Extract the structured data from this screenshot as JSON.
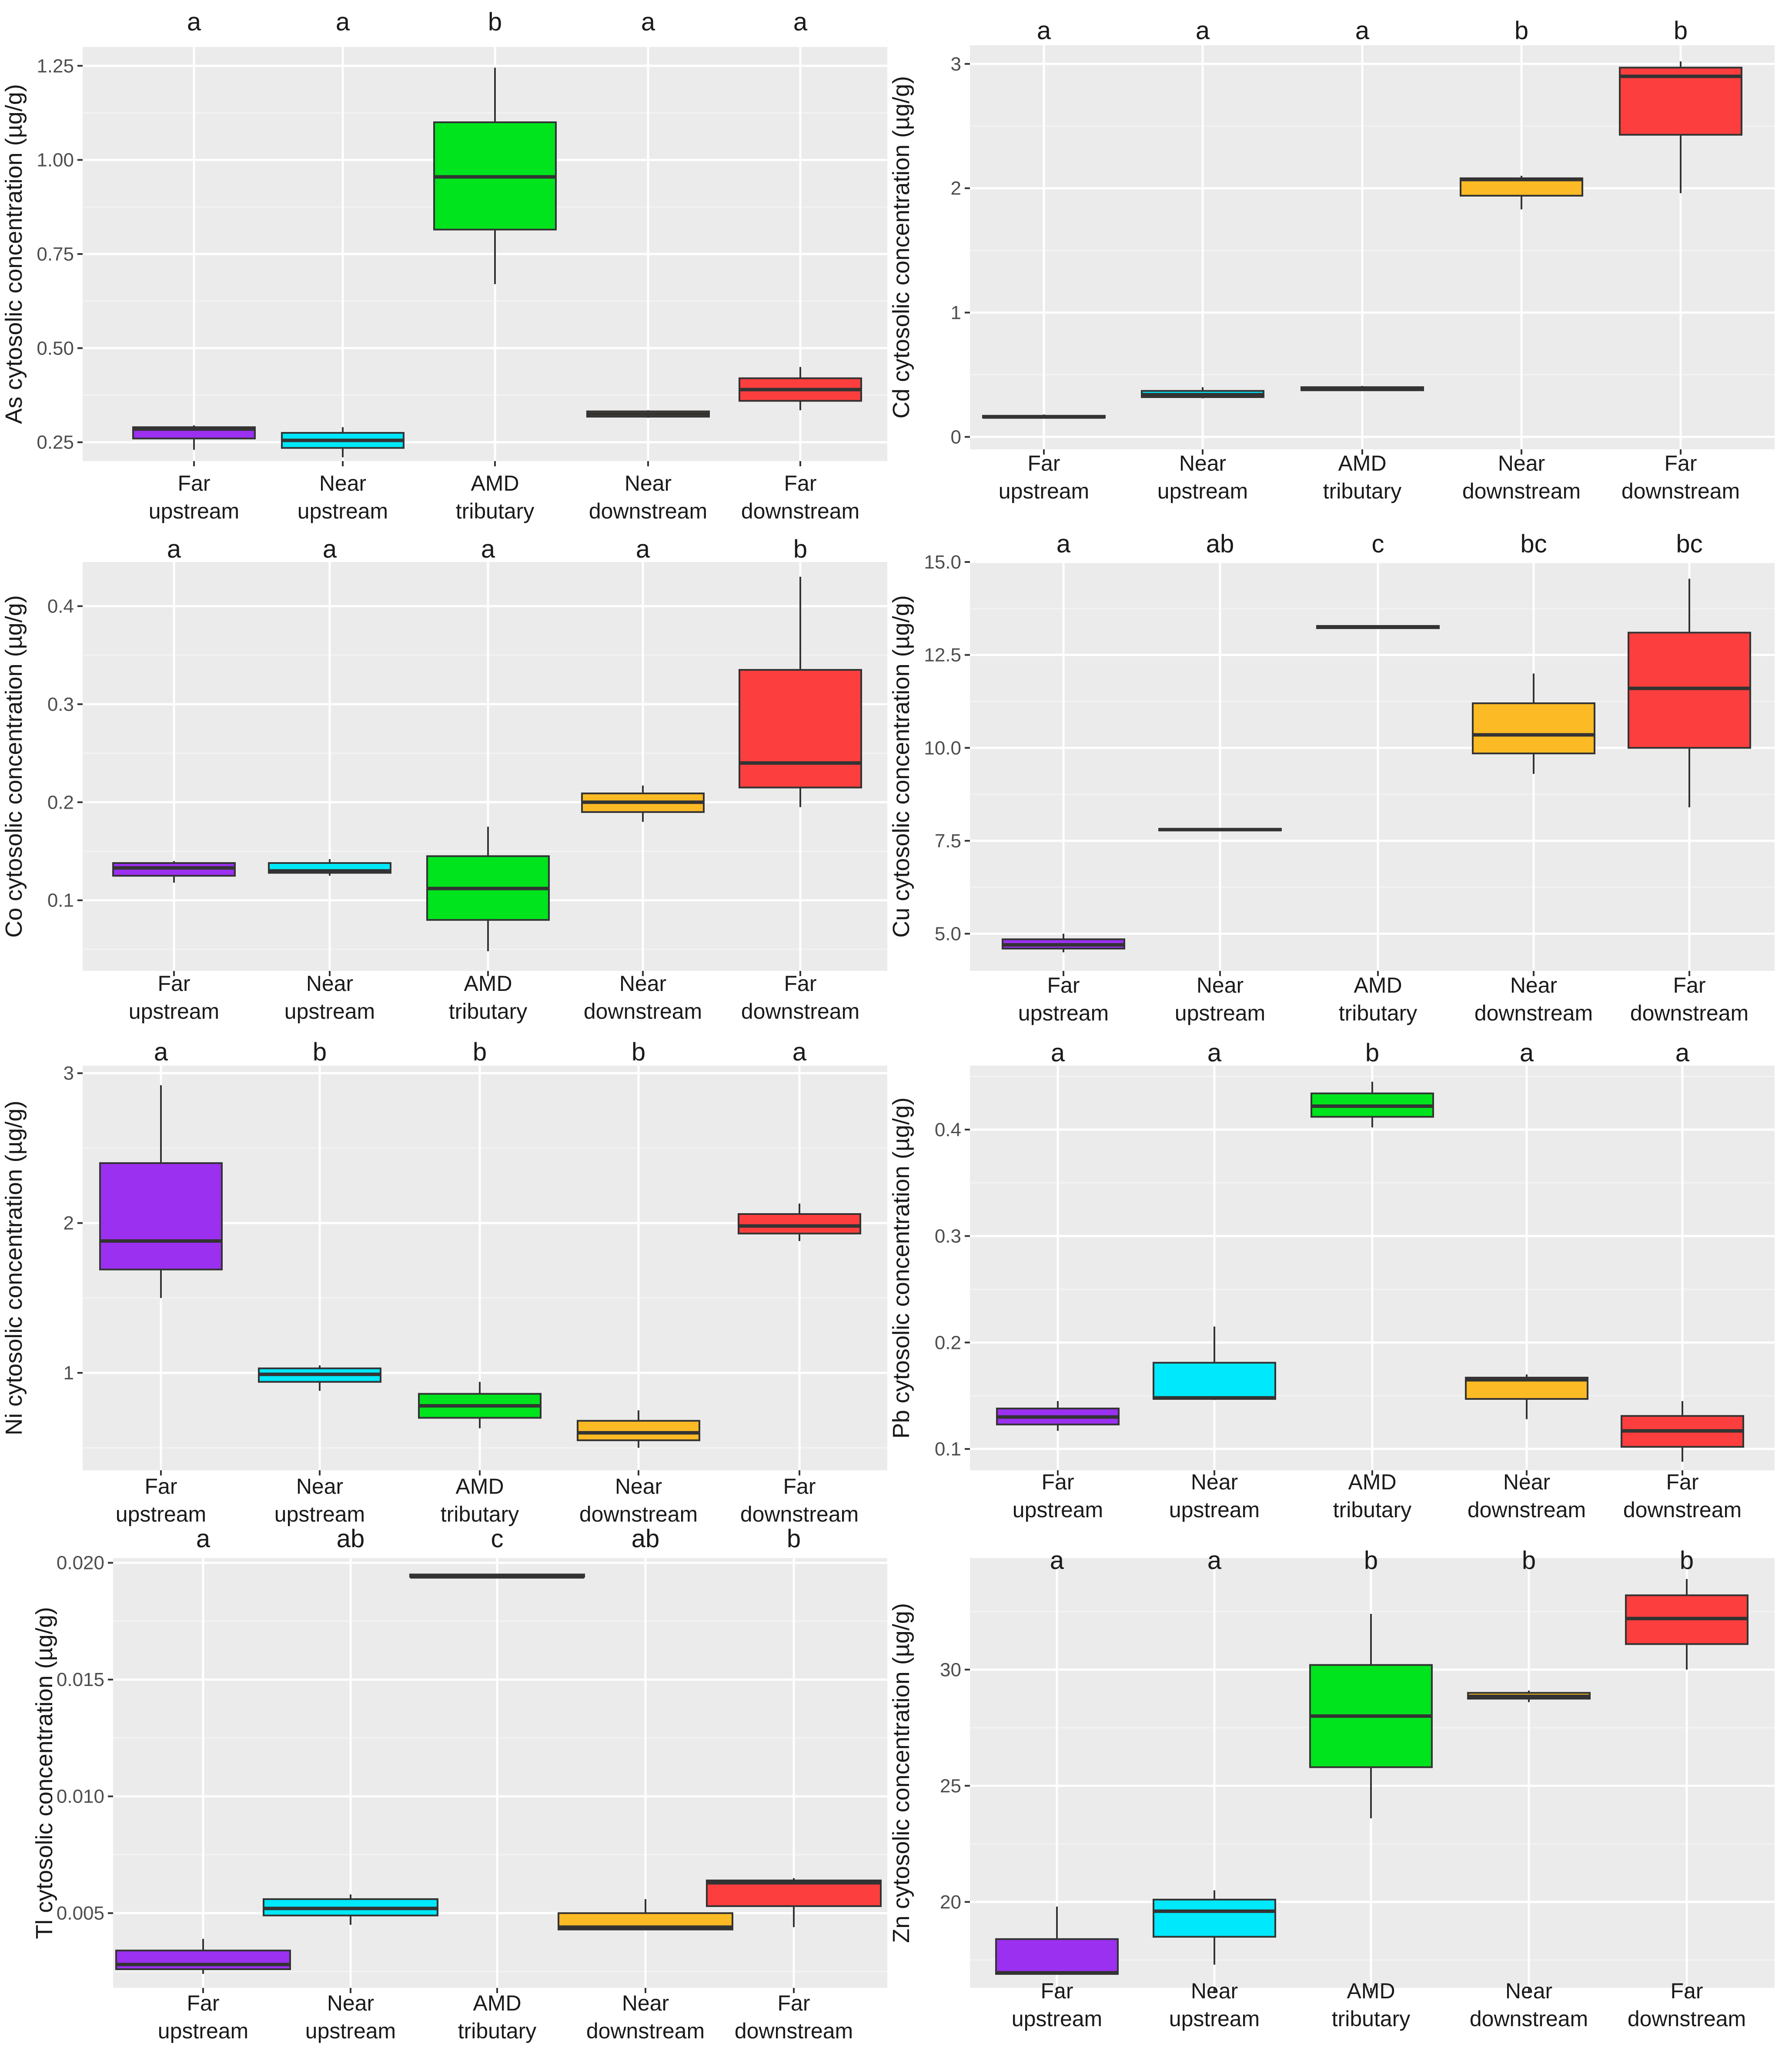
{
  "figure": {
    "palette": {
      "panel_bg": "#ebebeb",
      "grid_major": "#ffffff",
      "grid_minor": "#f3f3f3",
      "outline": "#333333",
      "whisker": "#333333",
      "far_upstream": "#9b30f0",
      "near_upstream": "#00e8fb",
      "amd_tributary": "#00e41e",
      "near_downstream": "#fcba25",
      "far_downstream": "#fd3e3e"
    }
  },
  "chart_data": [
    {
      "id": "as",
      "type": "boxplot",
      "ylabel": "As cytosolic concentration (µg/g)",
      "ylim": [
        0.2,
        1.3
      ],
      "yticks": [
        0.25,
        0.5,
        0.75,
        1.0,
        1.25
      ],
      "ytick_labels": [
        "0.25",
        "0.50",
        "0.75",
        "1.00",
        "1.25"
      ],
      "categories": [
        [
          "Far",
          "upstream"
        ],
        [
          "Near",
          "upstream"
        ],
        [
          "AMD",
          "tributary"
        ],
        [
          "Near",
          "downstream"
        ],
        [
          "Far",
          "downstream"
        ]
      ],
      "colors": [
        "far_upstream",
        "near_upstream",
        "amd_tributary",
        "near_downstream",
        "far_downstream"
      ],
      "letters": [
        "a",
        "a",
        "b",
        "a",
        "a"
      ],
      "boxes": [
        {
          "min": 0.23,
          "q1": 0.26,
          "median": 0.285,
          "q3": 0.29,
          "max": 0.295
        },
        {
          "min": 0.21,
          "q1": 0.235,
          "median": 0.255,
          "q3": 0.275,
          "max": 0.29
        },
        {
          "min": 0.67,
          "q1": 0.815,
          "median": 0.955,
          "q3": 1.1,
          "max": 1.245
        },
        {
          "min": 0.315,
          "q1": 0.318,
          "median": 0.325,
          "q3": 0.332,
          "max": 0.335
        },
        {
          "min": 0.335,
          "q1": 0.36,
          "median": 0.39,
          "q3": 0.42,
          "max": 0.45
        }
      ]
    },
    {
      "id": "cd",
      "type": "boxplot",
      "ylabel": "Cd cytosolic concentration (µg/g)",
      "ylim": [
        -0.1,
        3.15
      ],
      "yticks": [
        0,
        1,
        2,
        3
      ],
      "ytick_labels": [
        "0",
        "1",
        "2",
        "3"
      ],
      "categories": [
        [
          "Far",
          "upstream"
        ],
        [
          "Near",
          "upstream"
        ],
        [
          "AMD",
          "tributary"
        ],
        [
          "Near",
          "downstream"
        ],
        [
          "Far",
          "downstream"
        ]
      ],
      "colors": [
        "far_upstream",
        "near_upstream",
        "amd_tributary",
        "near_downstream",
        "far_downstream"
      ],
      "letters": [
        "a",
        "a",
        "a",
        "b",
        "b"
      ],
      "boxes": [
        {
          "min": 0.15,
          "q1": 0.155,
          "median": 0.16,
          "q3": 0.17,
          "max": 0.18
        },
        {
          "min": 0.31,
          "q1": 0.32,
          "median": 0.34,
          "q3": 0.37,
          "max": 0.4
        },
        {
          "min": 0.37,
          "q1": 0.375,
          "median": 0.385,
          "q3": 0.4,
          "max": 0.41
        },
        {
          "min": 1.83,
          "q1": 1.94,
          "median": 2.07,
          "q3": 2.08,
          "max": 2.1
        },
        {
          "min": 1.96,
          "q1": 2.43,
          "median": 2.9,
          "q3": 2.97,
          "max": 3.02
        }
      ]
    },
    {
      "id": "co",
      "type": "boxplot",
      "ylabel": "Co cytosolic concentration (µg/g)",
      "ylim": [
        0.028,
        0.445
      ],
      "yticks": [
        0.1,
        0.2,
        0.3,
        0.4
      ],
      "ytick_labels": [
        "0.1",
        "0.2",
        "0.3",
        "0.4"
      ],
      "categories": [
        [
          "Far",
          "upstream"
        ],
        [
          "Near",
          "upstream"
        ],
        [
          "AMD",
          "tributary"
        ],
        [
          "Near",
          "downstream"
        ],
        [
          "Far",
          "downstream"
        ]
      ],
      "colors": [
        "far_upstream",
        "near_upstream",
        "amd_tributary",
        "near_downstream",
        "far_downstream"
      ],
      "letters": [
        "a",
        "a",
        "a",
        "a",
        "b"
      ],
      "boxes": [
        {
          "min": 0.118,
          "q1": 0.125,
          "median": 0.133,
          "q3": 0.138,
          "max": 0.14
        },
        {
          "min": 0.125,
          "q1": 0.128,
          "median": 0.13,
          "q3": 0.138,
          "max": 0.142
        },
        {
          "min": 0.048,
          "q1": 0.08,
          "median": 0.112,
          "q3": 0.145,
          "max": 0.175
        },
        {
          "min": 0.18,
          "q1": 0.19,
          "median": 0.2,
          "q3": 0.209,
          "max": 0.217
        },
        {
          "min": 0.195,
          "q1": 0.215,
          "median": 0.24,
          "q3": 0.335,
          "max": 0.43
        }
      ]
    },
    {
      "id": "cu",
      "type": "boxplot",
      "ylabel": "Cu cytosolic concentration (µg/g)",
      "ylim": [
        4.0,
        15.0
      ],
      "yticks": [
        5.0,
        7.5,
        10.0,
        12.5,
        15.0
      ],
      "ytick_labels": [
        "5.0",
        "7.5",
        "10.0",
        "12.5",
        "15.0"
      ],
      "categories": [
        [
          "Far",
          "upstream"
        ],
        [
          "Near",
          "upstream"
        ],
        [
          "AMD",
          "tributary"
        ],
        [
          "Near",
          "downstream"
        ],
        [
          "Far",
          "downstream"
        ]
      ],
      "colors": [
        "far_upstream",
        "near_upstream",
        "amd_tributary",
        "near_downstream",
        "far_downstream"
      ],
      "letters": [
        "a",
        "ab",
        "c",
        "bc",
        "bc"
      ],
      "boxes": [
        {
          "min": 4.5,
          "q1": 4.6,
          "median": 4.7,
          "q3": 4.85,
          "max": 5.0
        },
        {
          "min": 7.76,
          "q1": 7.78,
          "median": 7.8,
          "q3": 7.82,
          "max": 7.84
        },
        {
          "min": 13.2,
          "q1": 13.22,
          "median": 13.25,
          "q3": 13.28,
          "max": 13.3
        },
        {
          "min": 9.3,
          "q1": 9.85,
          "median": 10.35,
          "q3": 11.2,
          "max": 12.0
        },
        {
          "min": 8.4,
          "q1": 10.0,
          "median": 11.6,
          "q3": 13.1,
          "max": 14.55
        }
      ]
    },
    {
      "id": "ni",
      "type": "boxplot",
      "ylabel": "Ni cytosolic concentration (µg/g)",
      "ylim": [
        0.35,
        3.05
      ],
      "yticks": [
        1,
        2,
        3
      ],
      "ytick_labels": [
        "1",
        "2",
        "3"
      ],
      "categories": [
        [
          "Far",
          "upstream"
        ],
        [
          "Near",
          "upstream"
        ],
        [
          "AMD",
          "tributary"
        ],
        [
          "Near",
          "downstream"
        ],
        [
          "Far",
          "downstream"
        ]
      ],
      "colors": [
        "far_upstream",
        "near_upstream",
        "amd_tributary",
        "near_downstream",
        "far_downstream"
      ],
      "letters": [
        "a",
        "b",
        "b",
        "b",
        "a"
      ],
      "boxes": [
        {
          "min": 1.5,
          "q1": 1.69,
          "median": 1.88,
          "q3": 2.4,
          "max": 2.92
        },
        {
          "min": 0.88,
          "q1": 0.94,
          "median": 0.99,
          "q3": 1.03,
          "max": 1.05
        },
        {
          "min": 0.63,
          "q1": 0.7,
          "median": 0.78,
          "q3": 0.86,
          "max": 0.94
        },
        {
          "min": 0.5,
          "q1": 0.55,
          "median": 0.6,
          "q3": 0.68,
          "max": 0.75
        },
        {
          "min": 1.88,
          "q1": 1.93,
          "median": 1.98,
          "q3": 2.06,
          "max": 2.13
        }
      ]
    },
    {
      "id": "pb",
      "type": "boxplot",
      "ylabel": "Pb cytosolic concentration (µg/g)",
      "ylim": [
        0.08,
        0.46
      ],
      "yticks": [
        0.1,
        0.2,
        0.3,
        0.4
      ],
      "ytick_labels": [
        "0.1",
        "0.2",
        "0.3",
        "0.4"
      ],
      "categories": [
        [
          "Far",
          "upstream"
        ],
        [
          "Near",
          "upstream"
        ],
        [
          "AMD",
          "tributary"
        ],
        [
          "Near",
          "downstream"
        ],
        [
          "Far",
          "downstream"
        ]
      ],
      "colors": [
        "far_upstream",
        "near_upstream",
        "amd_tributary",
        "near_downstream",
        "far_downstream"
      ],
      "letters": [
        "a",
        "a",
        "b",
        "a",
        "a"
      ],
      "boxes": [
        {
          "min": 0.117,
          "q1": 0.123,
          "median": 0.13,
          "q3": 0.138,
          "max": 0.145
        },
        {
          "min": 0.146,
          "q1": 0.147,
          "median": 0.148,
          "q3": 0.181,
          "max": 0.215
        },
        {
          "min": 0.402,
          "q1": 0.412,
          "median": 0.422,
          "q3": 0.434,
          "max": 0.445
        },
        {
          "min": 0.128,
          "q1": 0.147,
          "median": 0.165,
          "q3": 0.167,
          "max": 0.17
        },
        {
          "min": 0.088,
          "q1": 0.102,
          "median": 0.117,
          "q3": 0.131,
          "max": 0.145
        }
      ]
    },
    {
      "id": "tl",
      "type": "boxplot",
      "ylabel": "Tl cytosolic concentration (µg/g)",
      "ylim": [
        0.0018,
        0.0202
      ],
      "yticks": [
        0.005,
        0.01,
        0.015,
        0.02
      ],
      "ytick_labels": [
        "0.005",
        "0.010",
        "0.015",
        "0.020"
      ],
      "categories": [
        [
          "Far",
          "upstream"
        ],
        [
          "Near",
          "upstream"
        ],
        [
          "AMD",
          "tributary"
        ],
        [
          "Near",
          "downstream"
        ],
        [
          "Far",
          "downstream"
        ]
      ],
      "colors": [
        "far_upstream",
        "near_upstream",
        "amd_tributary",
        "near_downstream",
        "far_downstream"
      ],
      "letters": [
        "a",
        "ab",
        "c",
        "ab",
        "b"
      ],
      "boxes": [
        {
          "min": 0.0024,
          "q1": 0.0026,
          "median": 0.0028,
          "q3": 0.0034,
          "max": 0.0039
        },
        {
          "min": 0.0045,
          "q1": 0.0049,
          "median": 0.0052,
          "q3": 0.0056,
          "max": 0.0058
        },
        {
          "min": 0.0194,
          "q1": 0.0194,
          "median": 0.0194,
          "q3": 0.0195,
          "max": 0.0195
        },
        {
          "min": 0.0043,
          "q1": 0.0043,
          "median": 0.0044,
          "q3": 0.005,
          "max": 0.0056
        },
        {
          "min": 0.0044,
          "q1": 0.0053,
          "median": 0.0063,
          "q3": 0.0064,
          "max": 0.0065
        }
      ]
    },
    {
      "id": "zn",
      "type": "boxplot",
      "ylabel": "Zn cytosolic concentration (µg/g)",
      "ylim": [
        16.3,
        34.8
      ],
      "yticks": [
        20,
        25,
        30
      ],
      "ytick_labels": [
        "20",
        "25",
        "30"
      ],
      "categories": [
        [
          "Far",
          "upstream"
        ],
        [
          "Near",
          "upstream"
        ],
        [
          "AMD",
          "tributary"
        ],
        [
          "Near",
          "downstream"
        ],
        [
          "Far",
          "downstream"
        ]
      ],
      "colors": [
        "far_upstream",
        "near_upstream",
        "amd_tributary",
        "near_downstream",
        "far_downstream"
      ],
      "letters": [
        "a",
        "a",
        "b",
        "b",
        "b"
      ],
      "boxes": [
        {
          "min": 16.9,
          "q1": 16.9,
          "median": 16.95,
          "q3": 18.4,
          "max": 19.8
        },
        {
          "min": 17.3,
          "q1": 18.5,
          "median": 19.6,
          "q3": 20.1,
          "max": 20.5
        },
        {
          "min": 23.6,
          "q1": 25.8,
          "median": 28.0,
          "q3": 30.2,
          "max": 32.4
        },
        {
          "min": 28.6,
          "q1": 28.75,
          "median": 28.85,
          "q3": 29.0,
          "max": 29.1
        },
        {
          "min": 30.0,
          "q1": 31.1,
          "median": 32.2,
          "q3": 33.2,
          "max": 33.9
        }
      ]
    }
  ]
}
